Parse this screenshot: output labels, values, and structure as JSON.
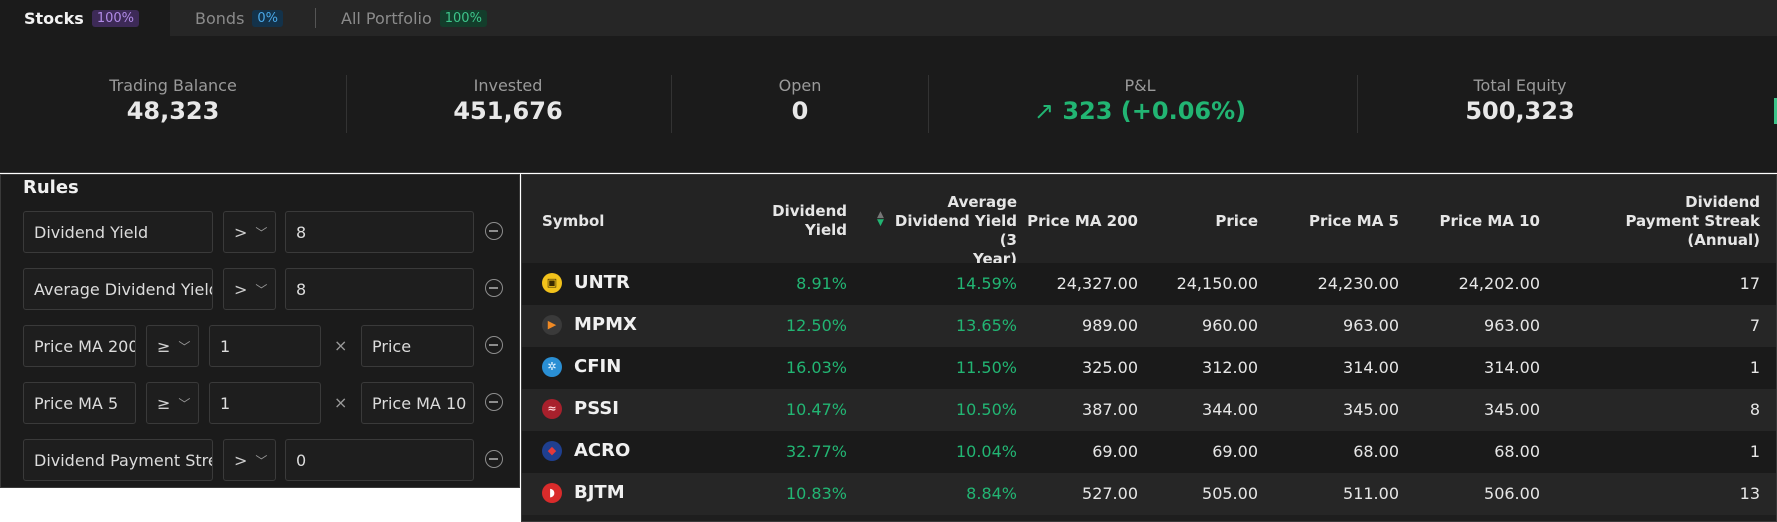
{
  "tabs": [
    {
      "label": "Stocks",
      "badge": "100%"
    },
    {
      "label": "Bonds",
      "badge": "0%"
    },
    {
      "label": "All Portfolio",
      "badge": "100%"
    }
  ],
  "summary": {
    "trading_balance": {
      "label": "Trading Balance",
      "value": "48,323"
    },
    "invested": {
      "label": "Invested",
      "value": "451,676"
    },
    "open": {
      "label": "Open",
      "value": "0"
    },
    "pnl": {
      "label": "P&L",
      "value": "323 (+0.06%)"
    },
    "total_equity": {
      "label": "Total Equity",
      "value": "500,323"
    }
  },
  "rules": {
    "title": "Rules",
    "items": [
      {
        "field": "Dividend Yield",
        "operator": ">",
        "value": "8"
      },
      {
        "field": "Average Dividend Yield",
        "operator": ">",
        "value": "8"
      },
      {
        "field": "Price MA 200",
        "operator": "≥",
        "value": "1",
        "times": "×",
        "compare": "Price"
      },
      {
        "field": "Price MA 5",
        "operator": "≥",
        "value": "1",
        "times": "×",
        "compare": "Price MA 10"
      },
      {
        "field": "Dividend Payment Streak",
        "operator": ">",
        "value": "0"
      }
    ]
  },
  "table": {
    "columns": {
      "symbol": "Symbol",
      "dividend_yield": [
        "Dividend",
        "Yield"
      ],
      "avg_dividend_yield": [
        "Average",
        "Dividend Yield (3",
        "Year)"
      ],
      "price_ma_200": "Price MA 200",
      "price": "Price",
      "price_ma_5": "Price MA 5",
      "price_ma_10": "Price MA 10",
      "streak": [
        "Dividend",
        "Payment Streak",
        "(Annual)"
      ]
    },
    "rows": [
      {
        "symbol": "UNTR",
        "logo_color": "#f2c21b",
        "logo_fg": "#3a2a00",
        "logo_icon": "tractor-logo-icon",
        "glyph": "▣",
        "div_yield": "8.91%",
        "avg_div_yield": "14.59%",
        "ma200": "24,327.00",
        "price": "24,150.00",
        "ma5": "24,230.00",
        "ma10": "24,202.00",
        "streak": "17"
      },
      {
        "symbol": "MPMX",
        "logo_color": "#3a3a3a",
        "logo_fg": "#f08a24",
        "logo_icon": "play-logo-icon",
        "glyph": "▶",
        "div_yield": "12.50%",
        "avg_div_yield": "13.65%",
        "ma200": "989.00",
        "price": "960.00",
        "ma5": "963.00",
        "ma10": "963.00",
        "streak": "7"
      },
      {
        "symbol": "CFIN",
        "logo_color": "#2a8fd4",
        "logo_fg": "#dff1ff",
        "logo_icon": "flower-logo-icon",
        "glyph": "✲",
        "div_yield": "16.03%",
        "avg_div_yield": "11.50%",
        "ma200": "325.00",
        "price": "312.00",
        "ma5": "314.00",
        "ma10": "314.00",
        "streak": "1"
      },
      {
        "symbol": "PSSI",
        "logo_color": "#a8202c",
        "logo_fg": "#ffd0d4",
        "logo_icon": "wave-logo-icon",
        "glyph": "≈",
        "div_yield": "10.47%",
        "avg_div_yield": "10.50%",
        "ma200": "387.00",
        "price": "344.00",
        "ma5": "345.00",
        "ma10": "345.00",
        "streak": "8"
      },
      {
        "symbol": "ACRO",
        "logo_color": "#1f3f8f",
        "logo_fg": "#e53a3a",
        "logo_icon": "shield-logo-icon",
        "glyph": "◆",
        "div_yield": "32.77%",
        "avg_div_yield": "10.04%",
        "ma200": "69.00",
        "price": "69.00",
        "ma5": "68.00",
        "ma10": "68.00",
        "streak": "1"
      },
      {
        "symbol": "BJTM",
        "logo_color": "#d92b2b",
        "logo_fg": "#ffffff",
        "logo_icon": "swoosh-logo-icon",
        "glyph": "◗",
        "div_yield": "10.83%",
        "avg_div_yield": "8.84%",
        "ma200": "527.00",
        "price": "505.00",
        "ma5": "511.00",
        "ma10": "506.00",
        "streak": "13"
      }
    ]
  },
  "colors": {
    "positive": "#22b573",
    "background": "#1b1b1b"
  }
}
